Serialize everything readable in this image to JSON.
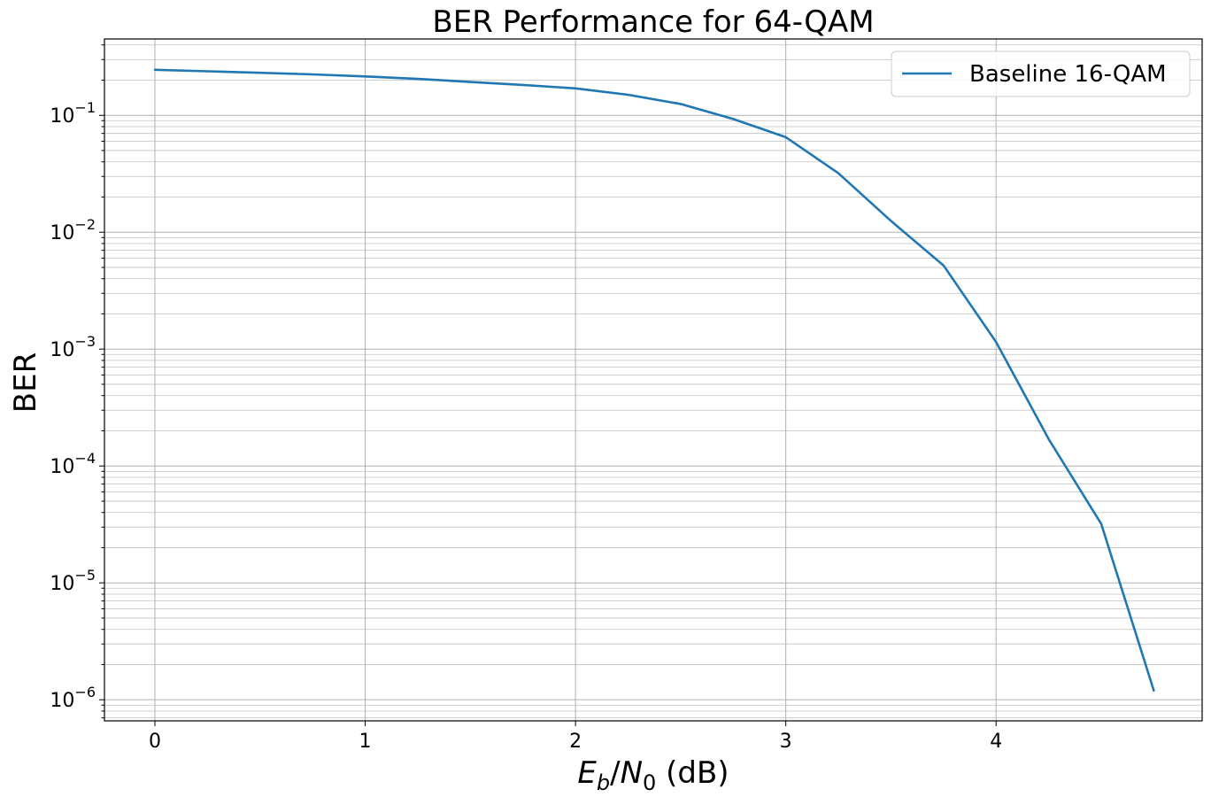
{
  "chart_data": {
    "type": "line",
    "title": "BER Performance for 64-QAM",
    "xlabel": {
      "E": "E",
      "b": "b",
      "slash": "/",
      "N": "N",
      "zero": "0",
      "unit": " (dB)"
    },
    "ylabel": "BER",
    "x_ticks": [
      "0",
      "1",
      "2",
      "3",
      "4"
    ],
    "y_ticks": [
      {
        "base": "10",
        "exp": "−1"
      },
      {
        "base": "10",
        "exp": "−2"
      },
      {
        "base": "10",
        "exp": "−3"
      },
      {
        "base": "10",
        "exp": "−4"
      },
      {
        "base": "10",
        "exp": "−5"
      },
      {
        "base": "10",
        "exp": "−6"
      }
    ],
    "xlim": [
      -0.24,
      4.98
    ],
    "ylim": [
      6.6e-07,
      0.45
    ],
    "y_scale": "log",
    "grid": "both (major and minor)",
    "legend_position": "top-right",
    "series": [
      {
        "name": "Baseline 16-QAM",
        "color": "#1f77b4",
        "x": [
          0,
          0.25,
          0.5,
          0.75,
          1.0,
          1.25,
          1.5,
          1.75,
          2.0,
          2.25,
          2.5,
          2.75,
          3.0,
          3.25,
          3.5,
          3.75,
          4.0,
          4.25,
          4.5,
          4.75
        ],
        "y": [
          0.245,
          0.238,
          0.231,
          0.224,
          0.215,
          0.205,
          0.193,
          0.182,
          0.17,
          0.15,
          0.125,
          0.093,
          0.065,
          0.032,
          0.0125,
          0.0052,
          0.00115,
          0.00017,
          3.2e-05,
          1.2e-06
        ]
      }
    ]
  }
}
